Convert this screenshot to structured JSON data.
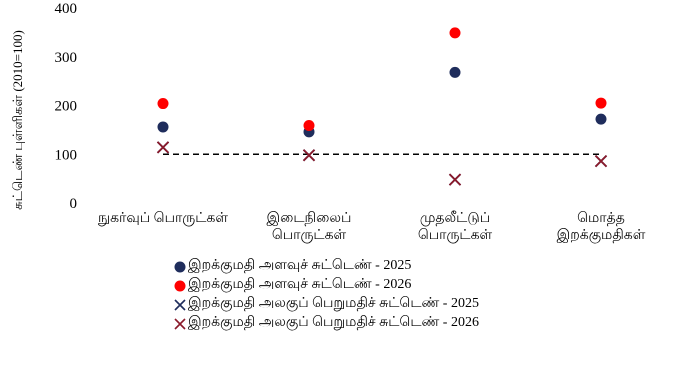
{
  "chart_data": {
    "type": "scatter",
    "title": "",
    "xlabel": "",
    "ylabel": "சுட்டெண் புள்ளிகள்  (2010=100)",
    "ylim": [
      0,
      400
    ],
    "yticks": [
      0,
      100,
      200,
      300,
      400
    ],
    "grid": false,
    "legend_position": "bottom",
    "categories": [
      [
        "நுகர்வுப் பொருட்கள்"
      ],
      [
        "இடைநிலைப்",
        "பொருட்கள்"
      ],
      [
        "முதலீட்டுப்",
        "பொருட்கள்"
      ],
      [
        "மொத்த",
        "இறக்குமதிகள்"
      ]
    ],
    "reference_line": {
      "y": 100,
      "style": "dashed",
      "color": "#000000"
    },
    "series": [
      {
        "name": "இறக்குமதி அளவுச் சுட்டெண் - 2025",
        "marker": "circle",
        "color": "#1f2d5c",
        "values": [
          156,
          146,
          268,
          172
        ]
      },
      {
        "name": "இறக்குமதி அளவுச் சுட்டெண் - 2026",
        "marker": "circle",
        "color": "#ff0000",
        "values": [
          204,
          159,
          349,
          205
        ]
      },
      {
        "name": "இறக்குமதி அலகுப் பெறுமதிச் சுட்டெண் - 2025",
        "marker": "x",
        "color": "#1f2d5c",
        "values": [
          114,
          98,
          48,
          86
        ]
      },
      {
        "name": "இறக்குமதி அலகுப் பெறுமதிச் சுட்டெண் - 2026",
        "marker": "x",
        "color": "#8b1a2b",
        "values": [
          114,
          98,
          48,
          86
        ]
      }
    ]
  }
}
